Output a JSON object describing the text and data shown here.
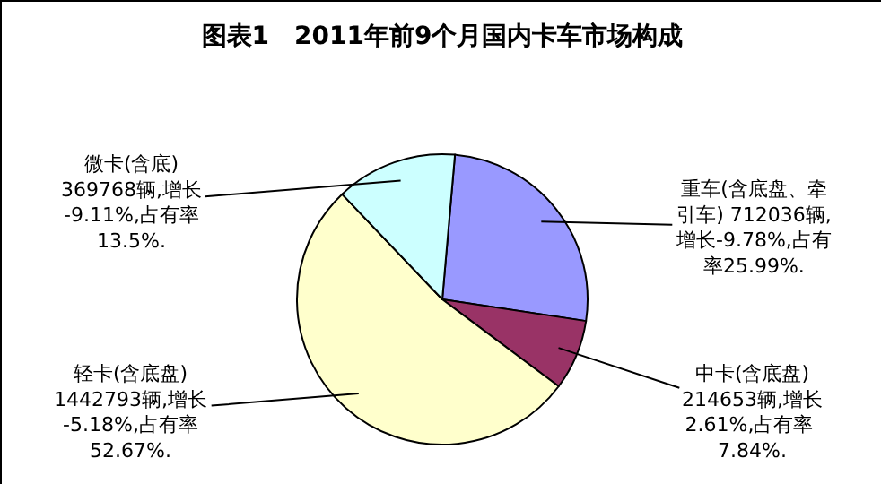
{
  "chart_data": {
    "type": "pie",
    "title": "图表1　2011年前9个月国内卡车市场构成",
    "categories": [
      "重车(含底盘、牵引车) 712036辆,增长-9.78%,占有率25.99%.",
      "中卡(含底盘)214653辆,增长2.61%,占有率 7.84%.",
      "轻卡(含底盘)1442793辆,增长-5.18%,占有率52.67%.",
      "微卡(含底)369768辆,增长-9.11%,占有率13.5%."
    ],
    "values": [
      25.99,
      7.84,
      52.67,
      13.5
    ],
    "colors": [
      "#9999ff",
      "#993366",
      "#ffffcc",
      "#ccffff"
    ],
    "legend": false
  }
}
